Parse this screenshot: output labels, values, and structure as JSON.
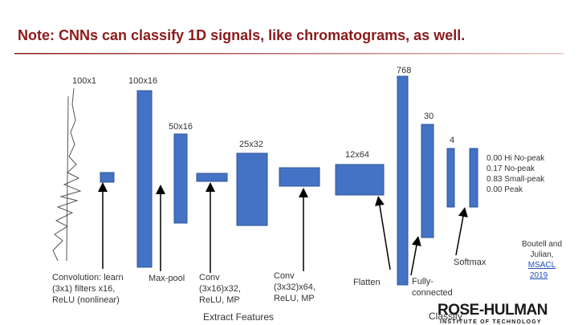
{
  "title": "Note: CNNs can classify 1D signals, like chromatograms, as well.",
  "layers": [
    "100x1",
    "100x16",
    "50x16",
    "25x32",
    "12x64",
    "768",
    "30",
    "4"
  ],
  "outputs": [
    "0.00 Hi No-peak",
    "0.17 No-peak",
    "0.83 Small-peak",
    "0.00 Peak"
  ],
  "captions": {
    "convolution": [
      "Convolution: learn",
      "(3x1) filters x16,",
      "ReLU (nonlinear)"
    ],
    "maxpool": [
      "Max-pool"
    ],
    "conv2": [
      "Conv",
      "(3x16)x32,",
      "ReLU, MP"
    ],
    "conv3": [
      "Conv",
      "(3x32)x64,",
      "ReLU, MP"
    ],
    "flatten": [
      "Flatten"
    ],
    "fully_connected": [
      "Fully-",
      "connected"
    ],
    "softmax": [
      "Softmax"
    ]
  },
  "groups": [
    "Extract Features",
    "Classify"
  ],
  "citation": [
    "Boutell and",
    "Julian,",
    "MSACL",
    "2019"
  ],
  "logo": {
    "name": "ROSE-HULMAN",
    "subtitle": "INSTITUTE OF TECHNOLOGY"
  }
}
